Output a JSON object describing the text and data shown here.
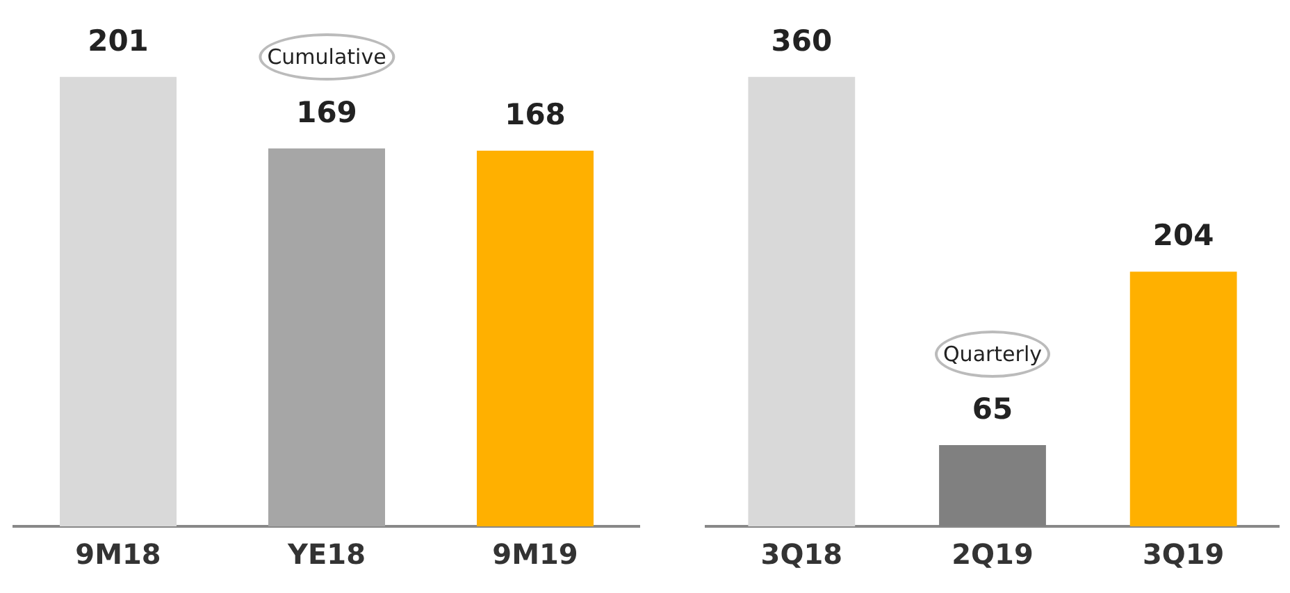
{
  "chart_data": [
    {
      "type": "bar",
      "categories": [
        "9M18",
        "YE18",
        "9M19"
      ],
      "colors": [
        "#d9d9d9",
        "#a6a6a6",
        "#ffb000"
      ],
      "values": [
        201,
        169,
        168
      ],
      "data_labels": true,
      "grid": false,
      "legend": false,
      "annotations": [
        "Cumulative"
      ]
    },
    {
      "type": "bar",
      "categories": [
        "3Q18",
        "2Q19",
        "3Q19"
      ],
      "colors": [
        "#d9d9d9",
        "#808080",
        "#ffb000"
      ],
      "values": [
        360,
        65,
        204
      ],
      "data_labels": true,
      "grid": false,
      "legend": false,
      "annotations": [
        "Quarterly"
      ]
    }
  ]
}
